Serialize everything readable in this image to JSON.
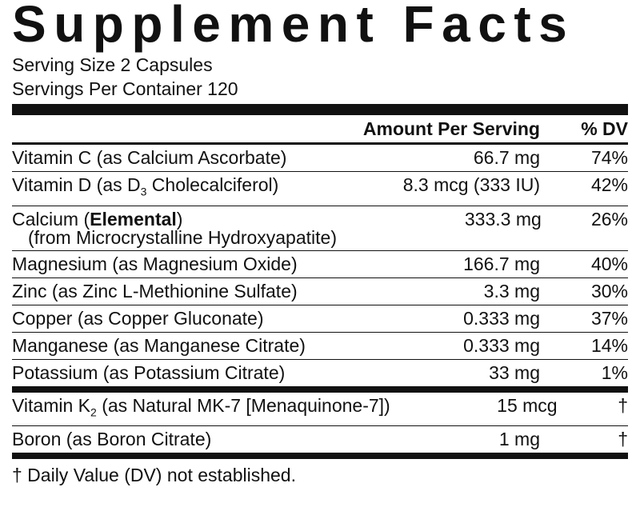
{
  "title": "Supplement Facts",
  "serving_size": "Serving Size 2 Capsules",
  "servings_per_container": "Servings Per Container 120",
  "header": {
    "amount": "Amount Per Serving",
    "dv": "% DV"
  },
  "rows": [
    {
      "name": [
        {
          "text": "Vitamin C (as Calcium Ascorbate)"
        }
      ],
      "amount": "66.7 mg",
      "dv": "74%"
    },
    {
      "name": [
        {
          "text": "Vitamin D (as D"
        },
        {
          "text": "3",
          "sub": true
        },
        {
          "text": " Cholecalciferol)"
        }
      ],
      "amount": "8.3 mcg (333 IU)",
      "dv": "42%"
    },
    {
      "name": [
        {
          "text": "Calcium ("
        },
        {
          "text": "Elemental",
          "bold": true
        },
        {
          "text": ")"
        }
      ],
      "note": "(from Microcrystalline Hydroxyapatite)",
      "amount": "333.3 mg",
      "dv": "26%"
    },
    {
      "name": [
        {
          "text": "Magnesium (as Magnesium Oxide)"
        }
      ],
      "amount": "166.7 mg",
      "dv": "40%"
    },
    {
      "name": [
        {
          "text": "Zinc (as Zinc L-Methionine Sulfate)"
        }
      ],
      "amount": "3.3 mg",
      "dv": "30%"
    },
    {
      "name": [
        {
          "text": "Copper (as Copper Gluconate)"
        }
      ],
      "amount": "0.333 mg",
      "dv": "37%"
    },
    {
      "name": [
        {
          "text": "Manganese (as Manganese Citrate)"
        }
      ],
      "amount": "0.333 mg",
      "dv": "14%"
    },
    {
      "name": [
        {
          "text": "Potassium (as Potassium Citrate)"
        }
      ],
      "amount": "33 mg",
      "dv": "1%"
    }
  ],
  "rows_2": [
    {
      "name": [
        {
          "text": "Vitamin K"
        },
        {
          "text": "2",
          "sub": true
        },
        {
          "text": " (as Natural MK-7 [Menaquinone-7])"
        }
      ],
      "amount": "15 mcg",
      "dv": "†"
    },
    {
      "name": [
        {
          "text": "Boron (as Boron Citrate)"
        }
      ],
      "amount": "1 mg",
      "dv": "†"
    }
  ],
  "footnote": "† Daily Value (DV) not established."
}
